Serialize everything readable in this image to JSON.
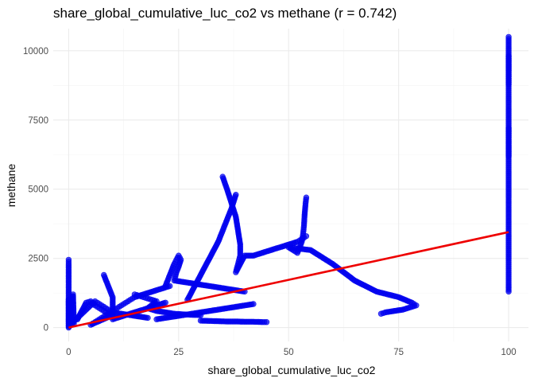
{
  "chart_data": {
    "type": "scatter",
    "title": "share_global_cumulative_luc_co2 vs methane (r = 0.742)",
    "xlabel": "share_global_cumulative_luc_co2",
    "ylabel": "methane",
    "xlim": [
      -3.5,
      104.5
    ],
    "ylim": [
      -500,
      10800
    ],
    "x_ticks": [
      0,
      25,
      50,
      75,
      100
    ],
    "x_tick_labels": [
      "0",
      "25",
      "50",
      "75",
      "100"
    ],
    "y_ticks": [
      0,
      2500,
      5000,
      7500,
      10000
    ],
    "y_tick_labels": [
      "0",
      "2500",
      "5000",
      "7500",
      "10000"
    ],
    "grid": true,
    "legend": "none",
    "colors": {
      "points": "#0000ee",
      "trend": "#ee0000"
    },
    "trend_line": {
      "x": [
        0,
        100
      ],
      "y": [
        0,
        3450
      ]
    },
    "series": [
      {
        "points_x": [
          0,
          0,
          0,
          0,
          0,
          0,
          0,
          0,
          0,
          0,
          0,
          0,
          0,
          0,
          0,
          0,
          0,
          0,
          0,
          0,
          0.3,
          0.4,
          0.6,
          0.5,
          0.8,
          1,
          1.2,
          0.2,
          1,
          2,
          3,
          4,
          5,
          6,
          7,
          8,
          9,
          10,
          12,
          14,
          16,
          18,
          2,
          3,
          4,
          5,
          6,
          7,
          8,
          9,
          10,
          5,
          6,
          7,
          8,
          9,
          10,
          11,
          12,
          13,
          14,
          15,
          17,
          19,
          21,
          23,
          8,
          8.5,
          9,
          9.5,
          10,
          10,
          12,
          14,
          16,
          18,
          20,
          22,
          15,
          16,
          17,
          18,
          19,
          20,
          18,
          20,
          22,
          24,
          26,
          28,
          30,
          20,
          22,
          24,
          26,
          28,
          30,
          32,
          34,
          36,
          38,
          40,
          42,
          22,
          22.5,
          23,
          23.5,
          24,
          24.5,
          25,
          25.5,
          25,
          24.5,
          24,
          26,
          28,
          30,
          32,
          34,
          36,
          38,
          40,
          27,
          28,
          29,
          30,
          31,
          32,
          33,
          34,
          35,
          36,
          37,
          38,
          30,
          32,
          34,
          36,
          38,
          40,
          42,
          44,
          45,
          35,
          36,
          37,
          38,
          38.5,
          39,
          39,
          38.5,
          38,
          40,
          42,
          44,
          46,
          48,
          50,
          52,
          53,
          54,
          54,
          53.8,
          53.6,
          53.5,
          53.3,
          53,
          52.5,
          52,
          50,
          55,
          60,
          65,
          70,
          75,
          78,
          79,
          76,
          72,
          71,
          100,
          100,
          100,
          100,
          100,
          100,
          100,
          100,
          100,
          100,
          100,
          100,
          100,
          100,
          100,
          100,
          100,
          100,
          100,
          100,
          100,
          100,
          100,
          100
        ],
        "points_y": [
          2450,
          2300,
          2100,
          1900,
          1700,
          1500,
          1300,
          1100,
          900,
          700,
          500,
          300,
          150,
          50,
          0,
          200,
          400,
          600,
          800,
          1000,
          100,
          300,
          500,
          700,
          900,
          1200,
          150,
          50,
          200,
          350,
          500,
          650,
          800,
          950,
          850,
          750,
          650,
          550,
          500,
          450,
          400,
          350,
          300,
          600,
          900,
          950,
          800,
          700,
          600,
          500,
          450,
          100,
          200,
          300,
          400,
          500,
          600,
          700,
          800,
          900,
          1000,
          1100,
          1200,
          1300,
          1400,
          1500,
          1900,
          1700,
          1500,
          1300,
          1100,
          300,
          400,
          500,
          600,
          700,
          800,
          900,
          1200,
          1150,
          1100,
          1050,
          1000,
          950,
          700,
          600,
          550,
          500,
          480,
          460,
          450,
          300,
          350,
          400,
          450,
          500,
          550,
          600,
          650,
          700,
          750,
          800,
          850,
          1500,
          1700,
          1900,
          2100,
          2300,
          2450,
          2600,
          2450,
          2200,
          2000,
          1700,
          1650,
          1600,
          1550,
          1500,
          1450,
          1400,
          1350,
          1300,
          1000,
          1300,
          1600,
          1900,
          2200,
          2500,
          2800,
          3100,
          3500,
          3900,
          4300,
          4800,
          250,
          240,
          230,
          220,
          220,
          210,
          210,
          200,
          200,
          5450,
          5000,
          4500,
          4000,
          3500,
          3000,
          2600,
          2300,
          2000,
          2600,
          2600,
          2700,
          2800,
          2900,
          3000,
          3100,
          3200,
          3300,
          4700,
          4400,
          4000,
          3700,
          3400,
          3100,
          2900,
          2700,
          2900,
          2800,
          2300,
          1700,
          1300,
          1100,
          900,
          800,
          650,
          550,
          500,
          10500,
          10000,
          9500,
          9000,
          8500,
          8000,
          7500,
          7000,
          6500,
          6000,
          5500,
          5000,
          4500,
          4000,
          3500,
          3000,
          2500,
          2000,
          1500,
          1300,
          9800,
          8800,
          7200,
          6200
        ]
      }
    ]
  }
}
